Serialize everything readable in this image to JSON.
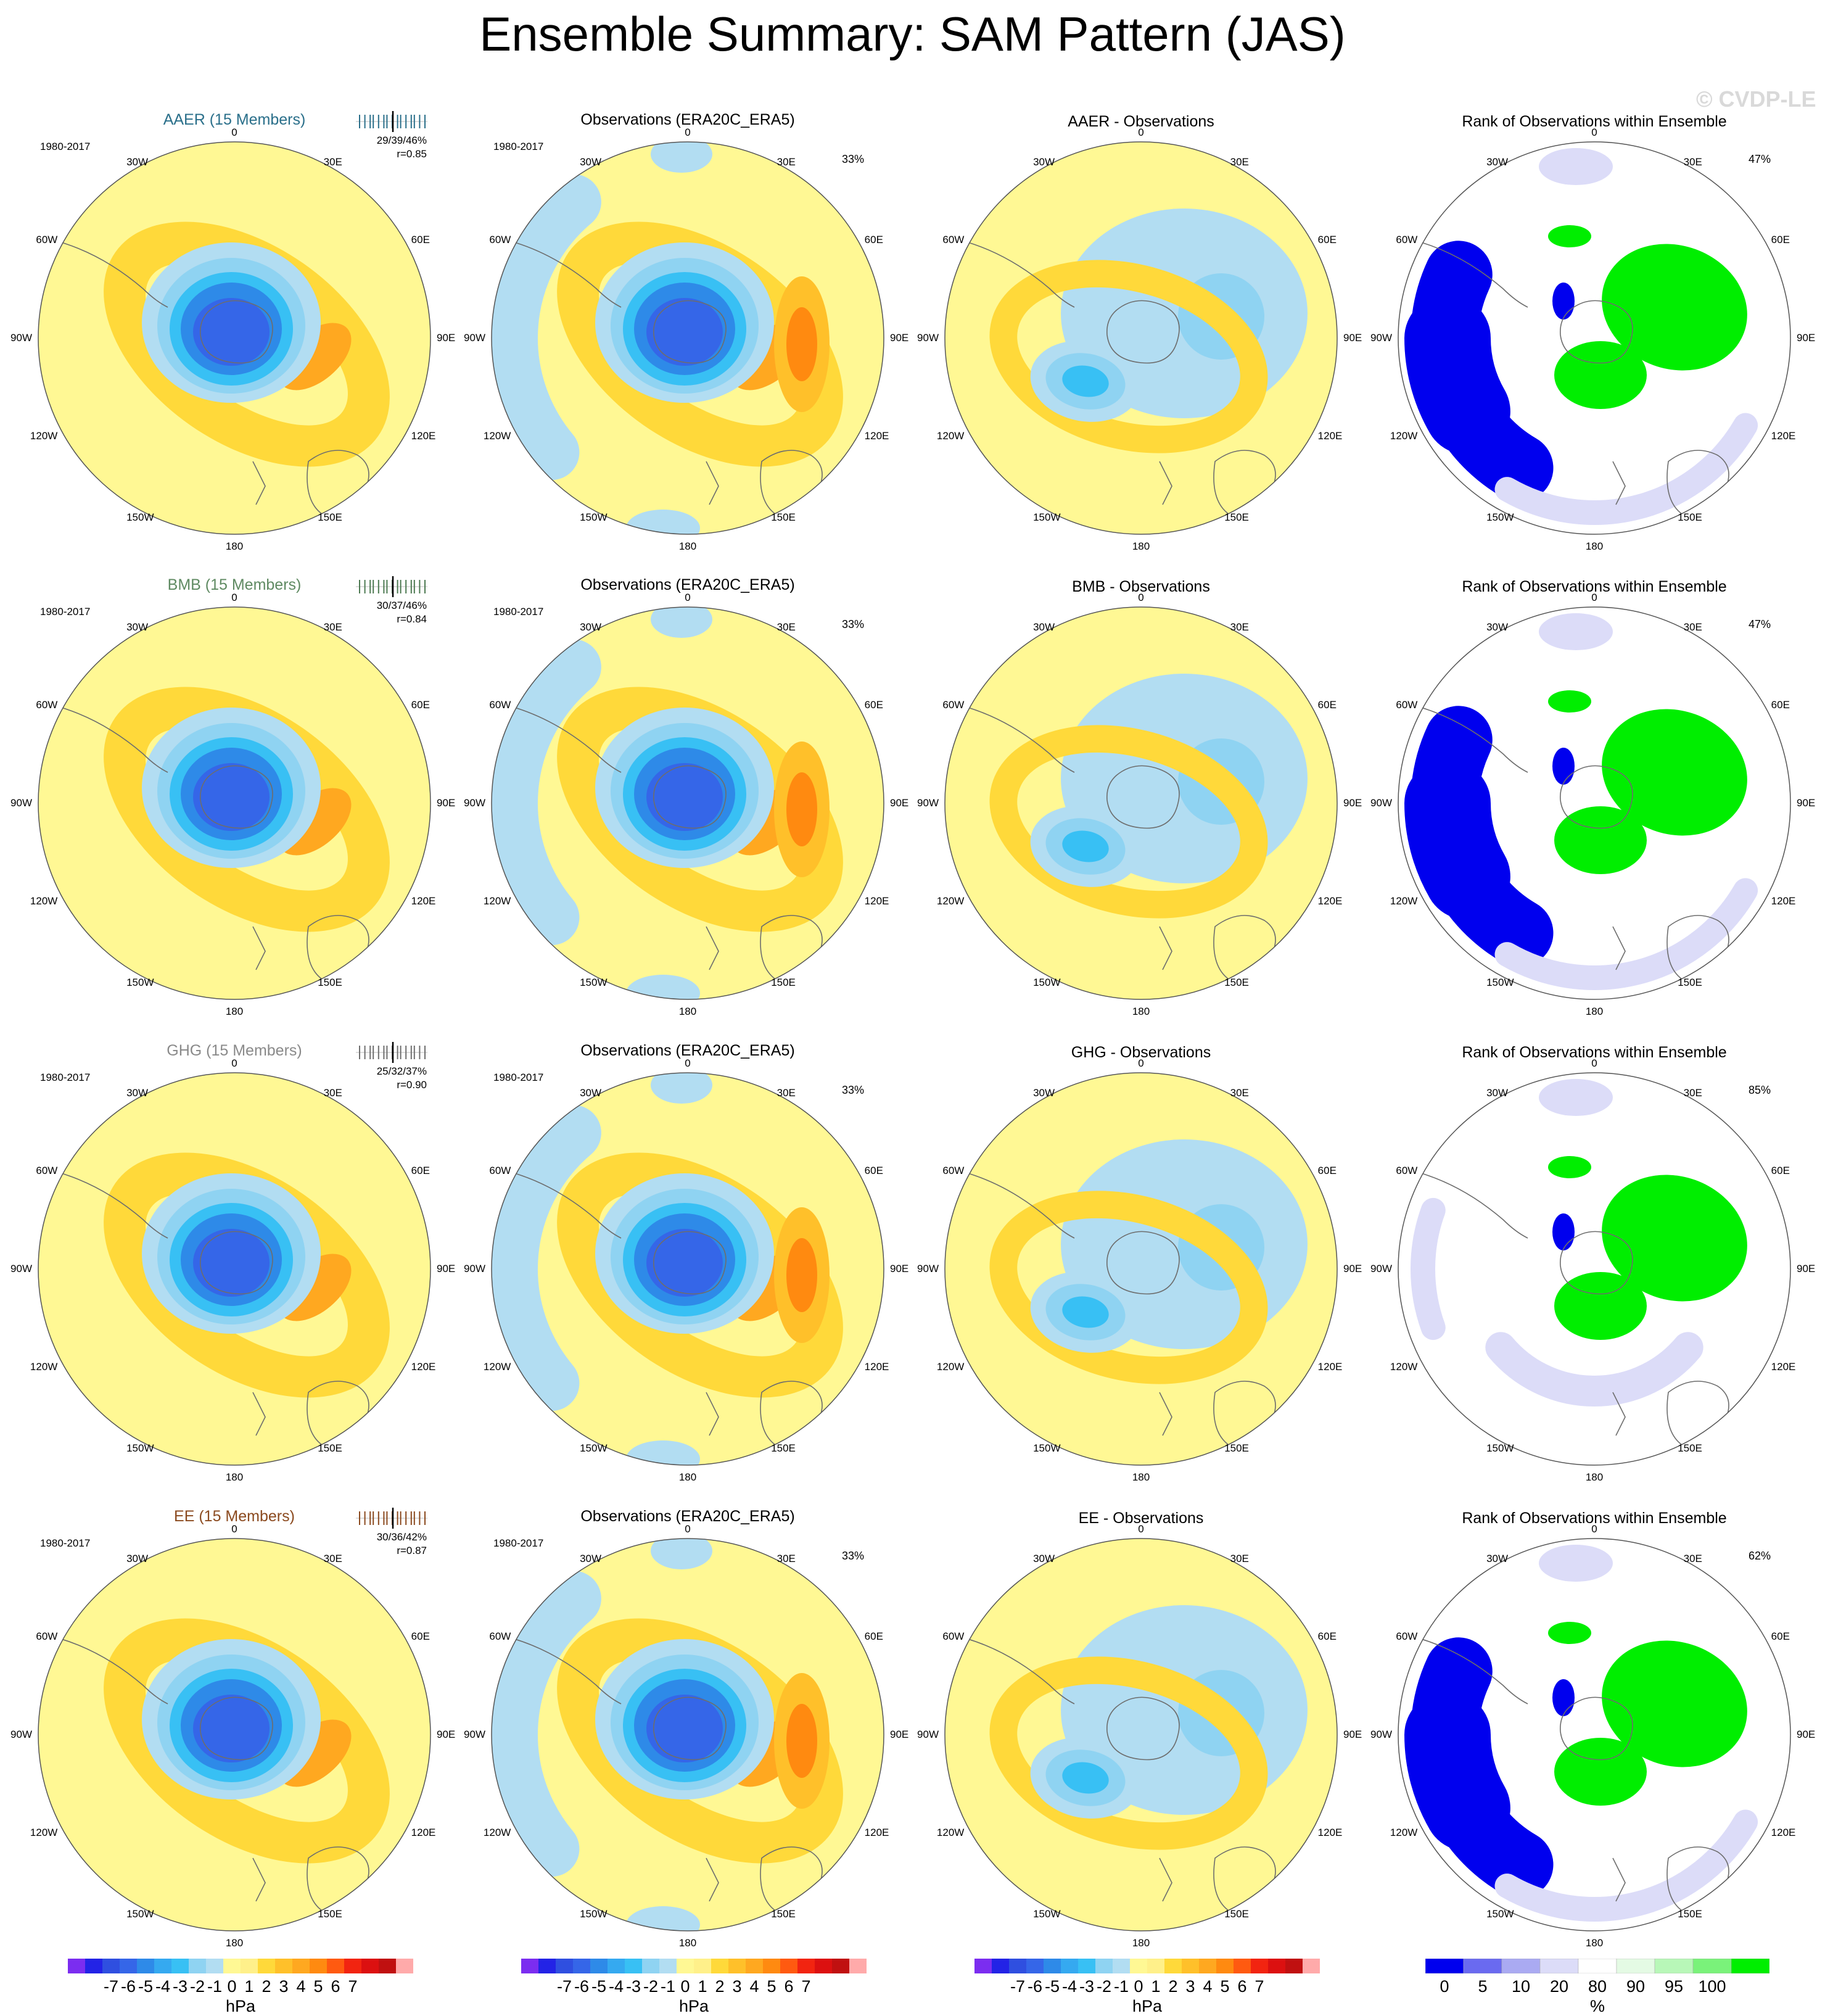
{
  "title": "Ensemble Summary: SAM Pattern (JAS)",
  "watermark": "© CVDP-LE",
  "period": "1980-2017",
  "lon_labels": {
    "top": "0",
    "tr": "30E",
    "rt": "60E",
    "right": "90E",
    "rb": "120E",
    "br": "150E",
    "bottom": "180",
    "bl": "150W",
    "lb": "120W",
    "left": "90W",
    "lt": "60W",
    "tl": "30W"
  },
  "rows": [
    {
      "ensemble": {
        "title": "AAER (15 Members)",
        "color": "#2a6f8a",
        "stats": "29/39/46%",
        "r": "r=0.85",
        "tick_color": "#2a6f8a"
      },
      "obs": {
        "title": "Observations (ERA20C_ERA5)",
        "pct": "33%"
      },
      "diff": {
        "title": "AAER - Observations"
      },
      "rank": {
        "title": "Rank of Observations within Ensemble",
        "pct": "47%"
      }
    },
    {
      "ensemble": {
        "title": "BMB (15 Members)",
        "color": "#5f8a62",
        "stats": "30/37/46%",
        "r": "r=0.84",
        "tick_color": "#4d7a52"
      },
      "obs": {
        "title": "Observations (ERA20C_ERA5)",
        "pct": "33%"
      },
      "diff": {
        "title": "BMB - Observations"
      },
      "rank": {
        "title": "Rank of Observations within Ensemble",
        "pct": "47%"
      }
    },
    {
      "ensemble": {
        "title": "GHG (15 Members)",
        "color": "#8a8a8a",
        "stats": "25/32/37%",
        "r": "r=0.90",
        "tick_color": "#6f6f6f"
      },
      "obs": {
        "title": "Observations (ERA20C_ERA5)",
        "pct": "33%"
      },
      "diff": {
        "title": "GHG - Observations"
      },
      "rank": {
        "title": "Rank of Observations within Ensemble",
        "pct": "85%"
      }
    },
    {
      "ensemble": {
        "title": "EE (15 Members)",
        "color": "#8b4a1f",
        "stats": "30/36/42%",
        "r": "r=0.87",
        "tick_color": "#8b4a1f"
      },
      "obs": {
        "title": "Observations (ERA20C_ERA5)",
        "pct": "33%"
      },
      "diff": {
        "title": "EE - Observations"
      },
      "rank": {
        "title": "Rank of Observations within Ensemble",
        "pct": "62%"
      }
    }
  ],
  "colorbar_hpa": {
    "colors": [
      "#7b2df0",
      "#2323e6",
      "#2f4fe0",
      "#3566e8",
      "#2e8ae8",
      "#35a9f0",
      "#38c0f4",
      "#8fd3f2",
      "#b2ddf2",
      "#fff894",
      "#fff08a",
      "#ffd93a",
      "#ffc02a",
      "#ffa820",
      "#ff8a10",
      "#ff5a10",
      "#f22410",
      "#dc1010",
      "#c01010",
      "#ffaaaa"
    ],
    "labels": [
      "-7",
      "-6",
      "-5",
      "-4",
      "-3",
      "-2",
      "-1",
      "0",
      "1",
      "2",
      "3",
      "4",
      "5",
      "6",
      "7"
    ],
    "unit": "hPa"
  },
  "colorbar_rank": {
    "colors": [
      "#0000ee",
      "#6a6af0",
      "#aaaaf2",
      "#dcdcf8",
      "#ffffff",
      "#e4fae4",
      "#b8f7b8",
      "#7af27a",
      "#00ee00"
    ],
    "labels": [
      "0",
      "5",
      "10",
      "20",
      "80",
      "90",
      "95",
      "100"
    ],
    "unit": "%"
  }
}
